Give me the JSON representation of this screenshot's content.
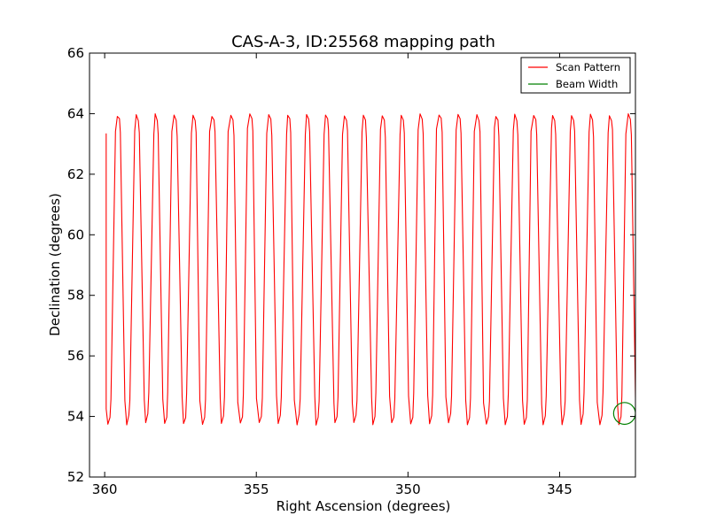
{
  "chart_data": {
    "type": "line",
    "title": "CAS-A-3, ID:25568 mapping path",
    "xlabel": "Right Ascension (degrees)",
    "ylabel": "Declination (degrees)",
    "xlim": [
      360.5,
      342.5
    ],
    "ylim": [
      52,
      66
    ],
    "x_reversed": true,
    "xticks": [
      360,
      355,
      350,
      345
    ],
    "xtick_labels": [
      "360",
      "355",
      "350",
      "345"
    ],
    "yticks": [
      52,
      54,
      56,
      58,
      60,
      62,
      64,
      66
    ],
    "ytick_labels": [
      "52",
      "54",
      "56",
      "58",
      "60",
      "62",
      "64",
      "66"
    ],
    "grid": false,
    "legend_position": "top-right",
    "series": [
      {
        "name": "Scan Pattern",
        "color": "#ff0000",
        "kind": "scan-legs",
        "ra_start": 359.95,
        "ra_step": 0.312,
        "n_legs": 57,
        "dec_low": 53.8,
        "dec_high": 63.9,
        "start_dec": 63.35,
        "note_values": "alternating up/down scan legs across RA 359.9 to 342.5"
      },
      {
        "name": "Beam Width",
        "color": "#008000",
        "kind": "circle",
        "center_ra": 342.86,
        "center_dec": 54.1,
        "radius_deg": 0.36
      }
    ]
  }
}
